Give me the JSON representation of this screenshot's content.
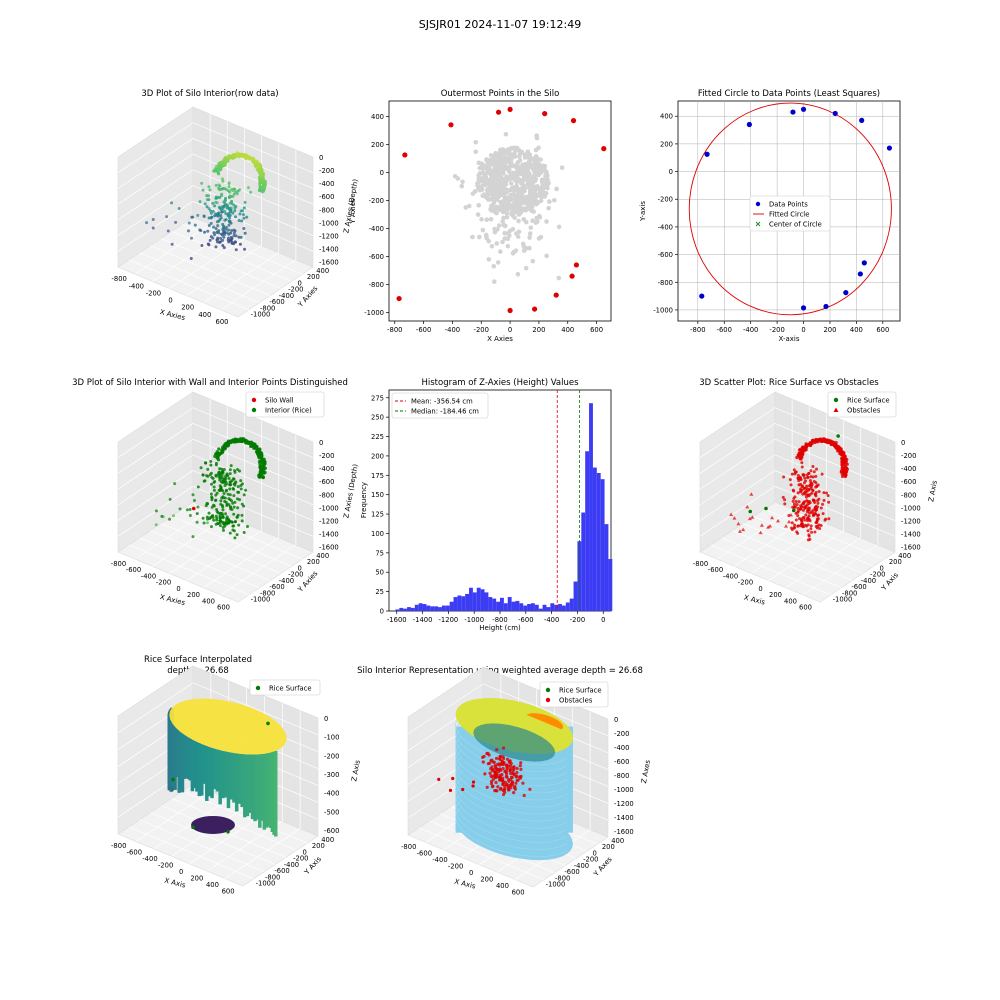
{
  "figure": {
    "suptitle": "SJSJR01 2024-11-07 19:12:49"
  },
  "panels": {
    "p1": {
      "title": "3D Plot of Silo Interior(row data)",
      "xlabel": "X Axies",
      "ylabel": "Y Axies",
      "zlabel": "Z Axies (Depth)",
      "xticks": [
        "-800",
        "-400",
        "-200",
        "0",
        "200",
        "400",
        "600"
      ],
      "yticks": [
        "400",
        "200",
        "0",
        "-200",
        "-400",
        "-600",
        "-800",
        "-1000"
      ],
      "zticks": [
        "0",
        "-200",
        "-400",
        "-600",
        "-800",
        "-1000",
        "-1200",
        "-1400",
        "-1600"
      ]
    },
    "p2": {
      "title": "Outermost Points in the Silo",
      "xlabel": "X Axies",
      "ylabel": "Y Axies",
      "xticks": [
        "-800",
        "-600",
        "-400",
        "-200",
        "0",
        "200",
        "400",
        "600"
      ],
      "yticks": [
        "400",
        "200",
        "0",
        "-200",
        "-400",
        "-600",
        "-800",
        "-1000"
      ]
    },
    "p3": {
      "title": "Fitted Circle to Data Points (Least Squares)",
      "xlabel": "X-axis",
      "ylabel": "Y-axis",
      "xticks": [
        "-800",
        "-600",
        "-400",
        "-200",
        "0",
        "200",
        "400",
        "600"
      ],
      "yticks": [
        "400",
        "200",
        "0",
        "-200",
        "-400",
        "-600",
        "-800",
        "-1000"
      ],
      "legend": [
        "Data Points",
        "Fitted Circle",
        "Center of Circle"
      ]
    },
    "p4": {
      "title": "3D Plot of Silo Interior with Wall and Interior Points Distinguished",
      "xlabel": "X Axies",
      "ylabel": "Y Axies",
      "zlabel": "Z Axies (Depth)",
      "xticks": [
        "-800",
        "-600",
        "-400",
        "-200",
        "0",
        "200",
        "400",
        "600"
      ],
      "yticks": [
        "400",
        "200",
        "0",
        "-200",
        "-400",
        "-600",
        "-800",
        "-1000"
      ],
      "zticks": [
        "0",
        "-200",
        "-400",
        "-600",
        "-800",
        "-1000",
        "-1200",
        "-1400",
        "-1600"
      ],
      "legend": [
        "Silo Wall",
        "Interior (Rice)"
      ]
    },
    "p5": {
      "title": "Histogram of Z-Axies (Height) Values",
      "xlabel": "Height (cm)",
      "ylabel": "Frequency",
      "xticks": [
        "-1600",
        "-1400",
        "-1200",
        "-1000",
        "-800",
        "-600",
        "-400",
        "-200",
        "0"
      ],
      "yticks": [
        "0",
        "25",
        "50",
        "75",
        "100",
        "125",
        "150",
        "175",
        "200",
        "225",
        "250",
        "275"
      ],
      "legend": [
        "Mean: -356.54 cm",
        "Median: -184.46 cm"
      ]
    },
    "p6": {
      "title": "3D Scatter Plot: Rice Surface vs Obstacles",
      "xlabel": "X Axis",
      "ylabel": "Y Axis",
      "zlabel": "Z Axis",
      "xticks": [
        "-800",
        "-600",
        "-400",
        "-200",
        "0",
        "200",
        "400",
        "600"
      ],
      "yticks": [
        "400",
        "200",
        "0",
        "-200",
        "-400",
        "-600",
        "-800",
        "-1000"
      ],
      "zticks": [
        "0",
        "-200",
        "-400",
        "-600",
        "-800",
        "-1000",
        "-1200",
        "-1400",
        "-1600"
      ],
      "legend": [
        "Rice Surface",
        "Obstacles"
      ]
    },
    "p7": {
      "title": "Rice Surface Interpolated",
      "subtitle": "depth = 26.68",
      "xlabel": "X Axis",
      "ylabel": "Y Axis",
      "zlabel": "Z Axis",
      "xticks": [
        "-800",
        "-600",
        "-400",
        "-200",
        "0",
        "200",
        "400",
        "600"
      ],
      "yticks": [
        "400",
        "200",
        "0",
        "-200",
        "-400",
        "-600",
        "-800",
        "-1000"
      ],
      "zticks": [
        "0",
        "-100",
        "-200",
        "-300",
        "-400",
        "-500",
        "-600"
      ],
      "legend": [
        "Rice Surface"
      ]
    },
    "p8": {
      "title": "Silo Interior Representation using weighted average depth = 26.68",
      "xlabel": "X Axis",
      "ylabel": "Y Axes",
      "zlabel": "Z Axes",
      "xticks": [
        "-800",
        "-600",
        "-400",
        "-200",
        "0",
        "200",
        "400",
        "600"
      ],
      "yticks": [
        "400",
        "200",
        "0",
        "-200",
        "-400",
        "-600",
        "-800",
        "-1000"
      ],
      "zticks": [
        "0",
        "-200",
        "-400",
        "-600",
        "-800",
        "-1000",
        "-1200",
        "-1400",
        "-1600"
      ],
      "legend": [
        "Rice Surface",
        "Obstacles"
      ]
    }
  },
  "colors": {
    "red": "#e00000",
    "blue": "#0000cc",
    "green": "#007a00",
    "hist": "#3c3cf5",
    "grey": "#d3d3d3",
    "sky": "#87ceeb",
    "grid": "#b0b0b0"
  },
  "chart_data": [
    {
      "type": "scatter",
      "panel": "p2",
      "xlim": [
        -840,
        700
      ],
      "ylim": [
        -1060,
        510
      ],
      "red_points": [
        [
          -770,
          -900
        ],
        [
          -730,
          125
        ],
        [
          -410,
          340
        ],
        [
          -80,
          430
        ],
        [
          0,
          450
        ],
        [
          240,
          420
        ],
        [
          440,
          370
        ],
        [
          650,
          170
        ],
        [
          0,
          -985
        ],
        [
          170,
          -975
        ],
        [
          320,
          -875
        ],
        [
          430,
          -740
        ],
        [
          460,
          -660
        ]
      ]
    },
    {
      "type": "scatter",
      "panel": "p3",
      "xlim": [
        -950,
        730
      ],
      "ylim": [
        -1080,
        510
      ],
      "points": [
        [
          -770,
          -900
        ],
        [
          -730,
          125
        ],
        [
          -410,
          340
        ],
        [
          -80,
          430
        ],
        [
          0,
          450
        ],
        [
          240,
          420
        ],
        [
          440,
          370
        ],
        [
          650,
          170
        ],
        [
          0,
          -985
        ],
        [
          170,
          -975
        ],
        [
          320,
          -875
        ],
        [
          430,
          -740
        ],
        [
          460,
          -660
        ]
      ],
      "circle": {
        "cx": -100,
        "cy": -270,
        "r": 765
      }
    },
    {
      "type": "bar",
      "panel": "p5",
      "xlim": [
        -1660,
        60
      ],
      "ylim": [
        0,
        285
      ],
      "bin_edges_start": -1610,
      "bin_width": 30,
      "values": [
        2,
        4,
        3,
        5,
        4,
        8,
        10,
        9,
        7,
        6,
        6,
        5,
        7,
        7,
        12,
        18,
        20,
        19,
        22,
        30,
        24,
        30,
        28,
        24,
        18,
        16,
        12,
        17,
        10,
        18,
        12,
        13,
        10,
        7,
        9,
        10,
        8,
        3,
        8,
        5,
        10,
        8,
        9,
        7,
        11,
        16,
        38,
        90,
        127,
        206,
        268,
        185,
        178,
        170,
        112,
        67
      ],
      "mean": -356.54,
      "median": -184.46
    }
  ]
}
